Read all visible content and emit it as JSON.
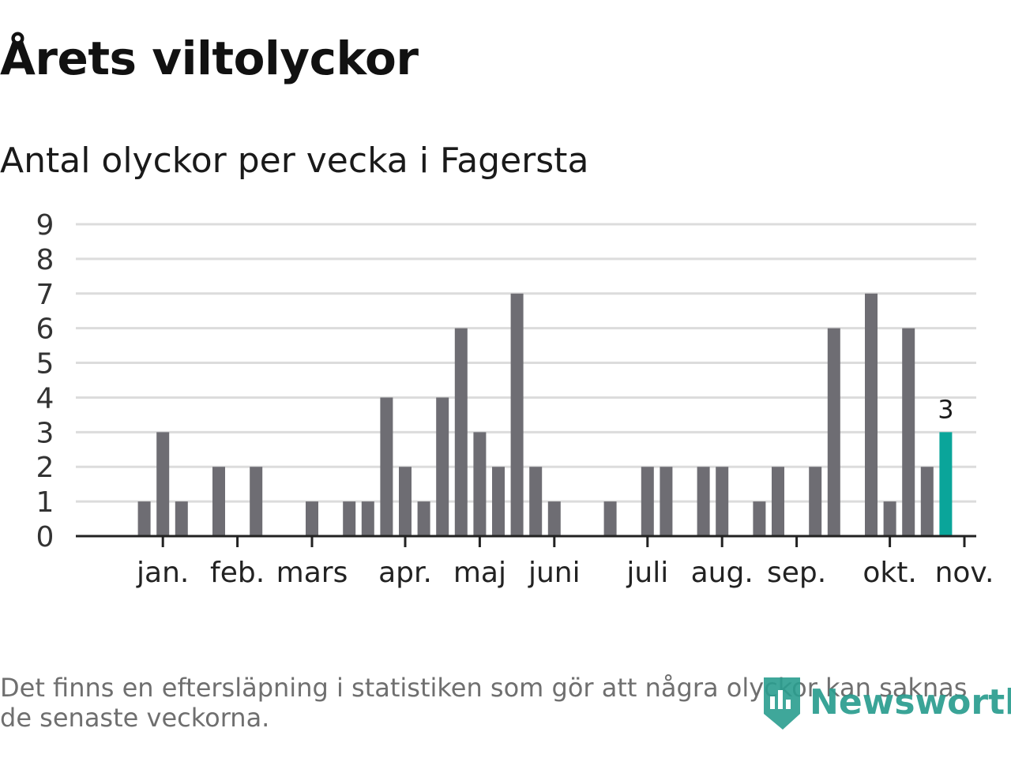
{
  "title": "Årets viltolyckor",
  "subtitle": "Antal olyckor per vecka i Fagersta",
  "footnote": "Det finns en eftersläpning i statistiken som gör att några olyckor kan saknas de senaste veckorna.",
  "logo_text": "Newsworthy",
  "colors": {
    "bar": "#6e6d73",
    "highlight": "#0aa59a",
    "grid": "#dcdcdc",
    "axis": "#222222"
  },
  "chart_data": {
    "type": "bar",
    "title": "Antal olyckor per vecka i Fagersta",
    "ylabel": "",
    "xlabel": "",
    "ylim": [
      0,
      9
    ],
    "yticks": [
      0,
      1,
      2,
      3,
      4,
      5,
      6,
      7,
      8,
      9
    ],
    "x_axis": {
      "first_week": 1,
      "last_week": 45
    },
    "month_ticks": [
      {
        "label": "jan.",
        "week": 3
      },
      {
        "label": "feb.",
        "week": 7
      },
      {
        "label": "mars",
        "week": 11
      },
      {
        "label": "apr.",
        "week": 16
      },
      {
        "label": "maj",
        "week": 20
      },
      {
        "label": "juni",
        "week": 24
      },
      {
        "label": "juli",
        "week": 29
      },
      {
        "label": "aug.",
        "week": 33
      },
      {
        "label": "sep.",
        "week": 37
      },
      {
        "label": "okt.",
        "week": 42
      },
      {
        "label": "nov.",
        "week": 46
      }
    ],
    "weeks": [
      1,
      2,
      3,
      4,
      5,
      6,
      7,
      8,
      9,
      10,
      11,
      12,
      13,
      14,
      15,
      16,
      17,
      18,
      19,
      20,
      21,
      22,
      23,
      24,
      25,
      26,
      27,
      28,
      29,
      30,
      31,
      32,
      33,
      34,
      35,
      36,
      37,
      38,
      39,
      40,
      41,
      42,
      43,
      44,
      45,
      46
    ],
    "values": [
      0,
      1,
      3,
      1,
      0,
      2,
      0,
      2,
      0,
      0,
      1,
      0,
      1,
      1,
      4,
      2,
      1,
      4,
      6,
      3,
      2,
      7,
      2,
      1,
      0,
      0,
      1,
      0,
      2,
      2,
      0,
      2,
      2,
      0,
      1,
      2,
      0,
      2,
      6,
      0,
      7,
      1,
      6,
      2,
      3,
      0
    ],
    "highlight_week": 45,
    "highlight_label": "3"
  }
}
